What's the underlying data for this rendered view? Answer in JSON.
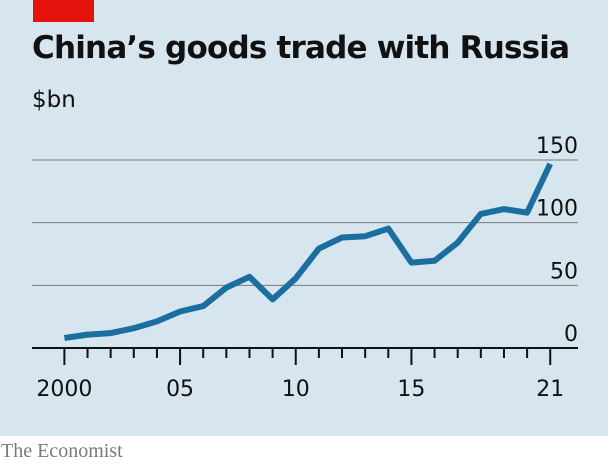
{
  "header": {
    "title": "China’s goods trade with Russia",
    "unit": "$bn"
  },
  "footer": {
    "source": "The Economist"
  },
  "colors": {
    "background": "#d6e5ee",
    "line": "#1a6ea0",
    "accent_tag": "#e3120b",
    "gridline": "#7a7a7a",
    "axis": "#111111"
  },
  "chart_data": {
    "type": "line",
    "title": "China’s goods trade with Russia",
    "ylabel": "$bn",
    "xlabel": "",
    "ylim": [
      0,
      150
    ],
    "xlim": [
      1998.6,
      2022.2
    ],
    "y_ticks": [
      0,
      50,
      100,
      150
    ],
    "y_tick_labels": [
      "0",
      "50",
      "100",
      "150"
    ],
    "x_tick_labels": [
      {
        "x": 2000,
        "label": "2000"
      },
      {
        "x": 2005,
        "label": "05"
      },
      {
        "x": 2010,
        "label": "10"
      },
      {
        "x": 2015,
        "label": "15"
      },
      {
        "x": 2021,
        "label": "21"
      }
    ],
    "grid": true,
    "y_axis_side": "right",
    "series": [
      {
        "x": [
          2000,
          2001,
          2002,
          2003,
          2004,
          2005,
          2006,
          2007,
          2008,
          2009,
          2010,
          2011,
          2012,
          2013,
          2014,
          2015,
          2016,
          2017,
          2018,
          2019,
          2020,
          2021
        ],
        "values": [
          8,
          10.7,
          11.9,
          15.8,
          21.2,
          29.1,
          33.4,
          48.2,
          56.8,
          38.8,
          55.5,
          79.3,
          88.2,
          89.2,
          95.3,
          68.1,
          69.6,
          84.1,
          107,
          110.8,
          108,
          146.9
        ]
      }
    ]
  }
}
